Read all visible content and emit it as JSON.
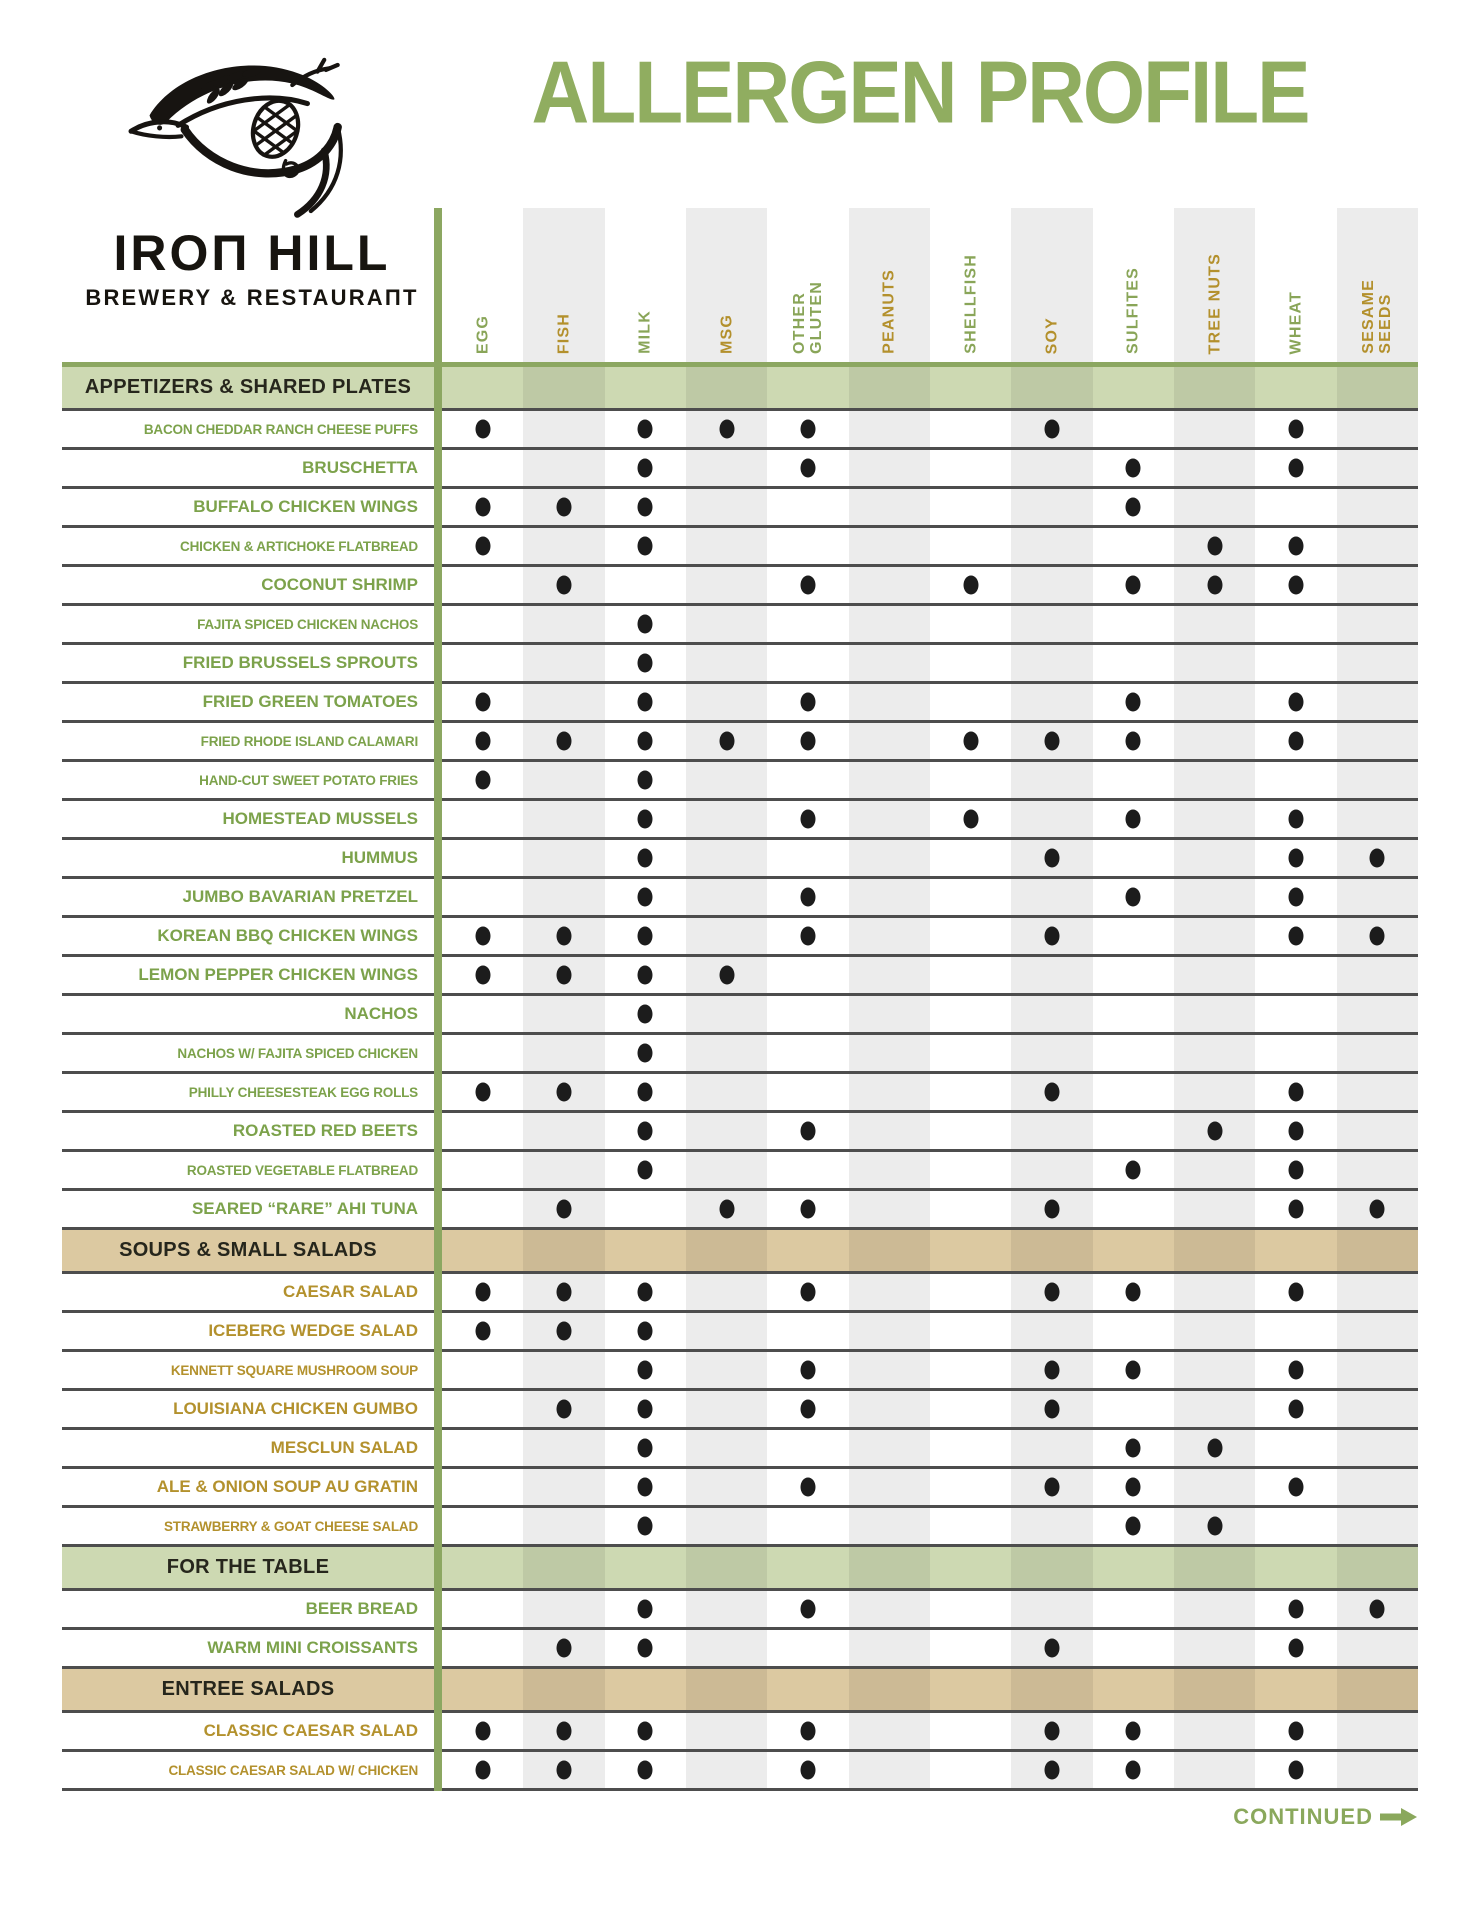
{
  "header": {
    "title": "ALLERGEN PROFILE"
  },
  "logo": {
    "wordmark": "IROΠ HILL",
    "tagline": "BREWERY & RESTAURAΠT",
    "icon": "bird-wheat-hops-logo"
  },
  "footer": {
    "continued_label": "CONTINUED",
    "arrow_icon": "arrow-right"
  },
  "colors": {
    "title_green": "#90ad60",
    "divider_olive": "#8ca761",
    "band_green": "#cdd9b2",
    "band_tan": "#dcc9a1",
    "label_green": "#7ca24b",
    "label_gold": "#b3912d",
    "stripe_gray": "#ececec",
    "separator": "#4d4d4d",
    "dot": "#1c1c1c"
  },
  "table": {
    "columns": [
      {
        "key": "EGG",
        "label": "EGG",
        "color": "green"
      },
      {
        "key": "FISH",
        "label": "FISH",
        "color": "gold"
      },
      {
        "key": "MILK",
        "label": "MILK",
        "color": "green"
      },
      {
        "key": "MSG",
        "label": "MSG",
        "color": "gold"
      },
      {
        "key": "OTHER GLUTEN",
        "label": "OTHER\nGLUTEN",
        "color": "green"
      },
      {
        "key": "PEANUTS",
        "label": "PEANUTS",
        "color": "gold"
      },
      {
        "key": "SHELLFISH",
        "label": "SHELLFISH",
        "color": "green"
      },
      {
        "key": "SOY",
        "label": "SOY",
        "color": "gold"
      },
      {
        "key": "SULFITES",
        "label": "SULFITES",
        "color": "green"
      },
      {
        "key": "TREE NUTS",
        "label": "TREE NUTS",
        "color": "gold"
      },
      {
        "key": "WHEAT",
        "label": "WHEAT",
        "color": "green"
      },
      {
        "key": "SESAME SEEDS",
        "label": "SESAME\nSEEDS",
        "color": "gold"
      }
    ],
    "sections": [
      {
        "label": "APPETIZERS & SHARED PLATES",
        "theme": "green",
        "rows": [
          {
            "dish": "BACON CHEDDAR RANCH CHEESE PUFFS",
            "allergens": [
              "EGG",
              "MILK",
              "MSG",
              "OTHER GLUTEN",
              "SOY",
              "WHEAT"
            ]
          },
          {
            "dish": "BRUSCHETTA",
            "allergens": [
              "MILK",
              "OTHER GLUTEN",
              "SULFITES",
              "WHEAT"
            ]
          },
          {
            "dish": "BUFFALO CHICKEN WINGS",
            "allergens": [
              "EGG",
              "FISH",
              "MILK",
              "SULFITES"
            ]
          },
          {
            "dish": "CHICKEN & ARTICHOKE FLATBREAD",
            "allergens": [
              "EGG",
              "MILK",
              "TREE NUTS",
              "WHEAT"
            ]
          },
          {
            "dish": "COCONUT SHRIMP",
            "allergens": [
              "FISH",
              "OTHER GLUTEN",
              "SHELLFISH",
              "SULFITES",
              "TREE NUTS",
              "WHEAT"
            ]
          },
          {
            "dish": "FAJITA SPICED CHICKEN NACHOS",
            "allergens": [
              "MILK"
            ]
          },
          {
            "dish": "FRIED BRUSSELS SPROUTS",
            "allergens": [
              "MILK"
            ]
          },
          {
            "dish": "FRIED GREEN TOMATOES",
            "allergens": [
              "EGG",
              "MILK",
              "OTHER GLUTEN",
              "SULFITES",
              "WHEAT"
            ]
          },
          {
            "dish": "FRIED RHODE ISLAND CALAMARI",
            "allergens": [
              "EGG",
              "FISH",
              "MILK",
              "MSG",
              "OTHER GLUTEN",
              "SHELLFISH",
              "SOY",
              "SULFITES",
              "WHEAT"
            ]
          },
          {
            "dish": "HAND-CUT SWEET POTATO FRIES",
            "allergens": [
              "EGG",
              "MILK"
            ]
          },
          {
            "dish": "HOMESTEAD MUSSELS",
            "allergens": [
              "MILK",
              "OTHER GLUTEN",
              "SHELLFISH",
              "SULFITES",
              "WHEAT"
            ]
          },
          {
            "dish": "HUMMUS",
            "allergens": [
              "MILK",
              "SOY",
              "WHEAT",
              "SESAME SEEDS"
            ]
          },
          {
            "dish": "JUMBO BAVARIAN PRETZEL",
            "allergens": [
              "MILK",
              "OTHER GLUTEN",
              "SULFITES",
              "WHEAT"
            ]
          },
          {
            "dish": "KOREAN BBQ CHICKEN WINGS",
            "allergens": [
              "EGG",
              "FISH",
              "MILK",
              "OTHER GLUTEN",
              "SOY",
              "WHEAT",
              "SESAME SEEDS"
            ]
          },
          {
            "dish": "LEMON PEPPER CHICKEN WINGS",
            "allergens": [
              "EGG",
              "FISH",
              "MILK",
              "MSG"
            ]
          },
          {
            "dish": "NACHOS",
            "allergens": [
              "MILK"
            ]
          },
          {
            "dish": "NACHOS W/ FAJITA SPICED CHICKEN",
            "allergens": [
              "MILK"
            ]
          },
          {
            "dish": "PHILLY CHEESESTEAK EGG ROLLS",
            "allergens": [
              "EGG",
              "FISH",
              "MILK",
              "SOY",
              "WHEAT"
            ]
          },
          {
            "dish": "ROASTED RED BEETS",
            "allergens": [
              "MILK",
              "OTHER GLUTEN",
              "TREE NUTS",
              "WHEAT"
            ]
          },
          {
            "dish": "ROASTED VEGETABLE FLATBREAD",
            "allergens": [
              "MILK",
              "SULFITES",
              "WHEAT"
            ]
          },
          {
            "dish": "SEARED “RARE” AHI TUNA",
            "allergens": [
              "FISH",
              "MSG",
              "OTHER GLUTEN",
              "SOY",
              "WHEAT",
              "SESAME SEEDS"
            ]
          }
        ]
      },
      {
        "label": "SOUPS & SMALL SALADS",
        "theme": "tan",
        "rows": [
          {
            "dish": "CAESAR SALAD",
            "allergens": [
              "EGG",
              "FISH",
              "MILK",
              "OTHER GLUTEN",
              "SOY",
              "SULFITES",
              "WHEAT"
            ]
          },
          {
            "dish": "ICEBERG WEDGE SALAD",
            "allergens": [
              "EGG",
              "FISH",
              "MILK"
            ]
          },
          {
            "dish": "KENNETT SQUARE MUSHROOM SOUP",
            "allergens": [
              "MILK",
              "OTHER GLUTEN",
              "SOY",
              "SULFITES",
              "WHEAT"
            ]
          },
          {
            "dish": "LOUISIANA CHICKEN GUMBO",
            "allergens": [
              "FISH",
              "MILK",
              "OTHER GLUTEN",
              "SOY",
              "WHEAT"
            ]
          },
          {
            "dish": "MESCLUN SALAD",
            "allergens": [
              "MILK",
              "SULFITES",
              "TREE NUTS"
            ]
          },
          {
            "dish": "ALE & ONION SOUP AU GRATIN",
            "allergens": [
              "MILK",
              "OTHER GLUTEN",
              "SOY",
              "SULFITES",
              "WHEAT"
            ]
          },
          {
            "dish": "STRAWBERRY & GOAT CHEESE SALAD",
            "allergens": [
              "MILK",
              "SULFITES",
              "TREE NUTS"
            ]
          }
        ]
      },
      {
        "label": "FOR THE TABLE",
        "theme": "green",
        "rows": [
          {
            "dish": "BEER BREAD",
            "allergens": [
              "MILK",
              "OTHER GLUTEN",
              "WHEAT",
              "SESAME SEEDS"
            ]
          },
          {
            "dish": "WARM MINI CROISSANTS",
            "allergens": [
              "FISH",
              "MILK",
              "SOY",
              "WHEAT"
            ]
          }
        ]
      },
      {
        "label": "ENTREE SALADS",
        "theme": "tan",
        "rows": [
          {
            "dish": "CLASSIC CAESAR SALAD",
            "allergens": [
              "EGG",
              "FISH",
              "MILK",
              "OTHER GLUTEN",
              "SOY",
              "SULFITES",
              "WHEAT"
            ]
          },
          {
            "dish": "CLASSIC CAESAR SALAD W/ CHICKEN",
            "allergens": [
              "EGG",
              "FISH",
              "MILK",
              "OTHER GLUTEN",
              "SOY",
              "SULFITES",
              "WHEAT"
            ]
          }
        ]
      }
    ]
  }
}
